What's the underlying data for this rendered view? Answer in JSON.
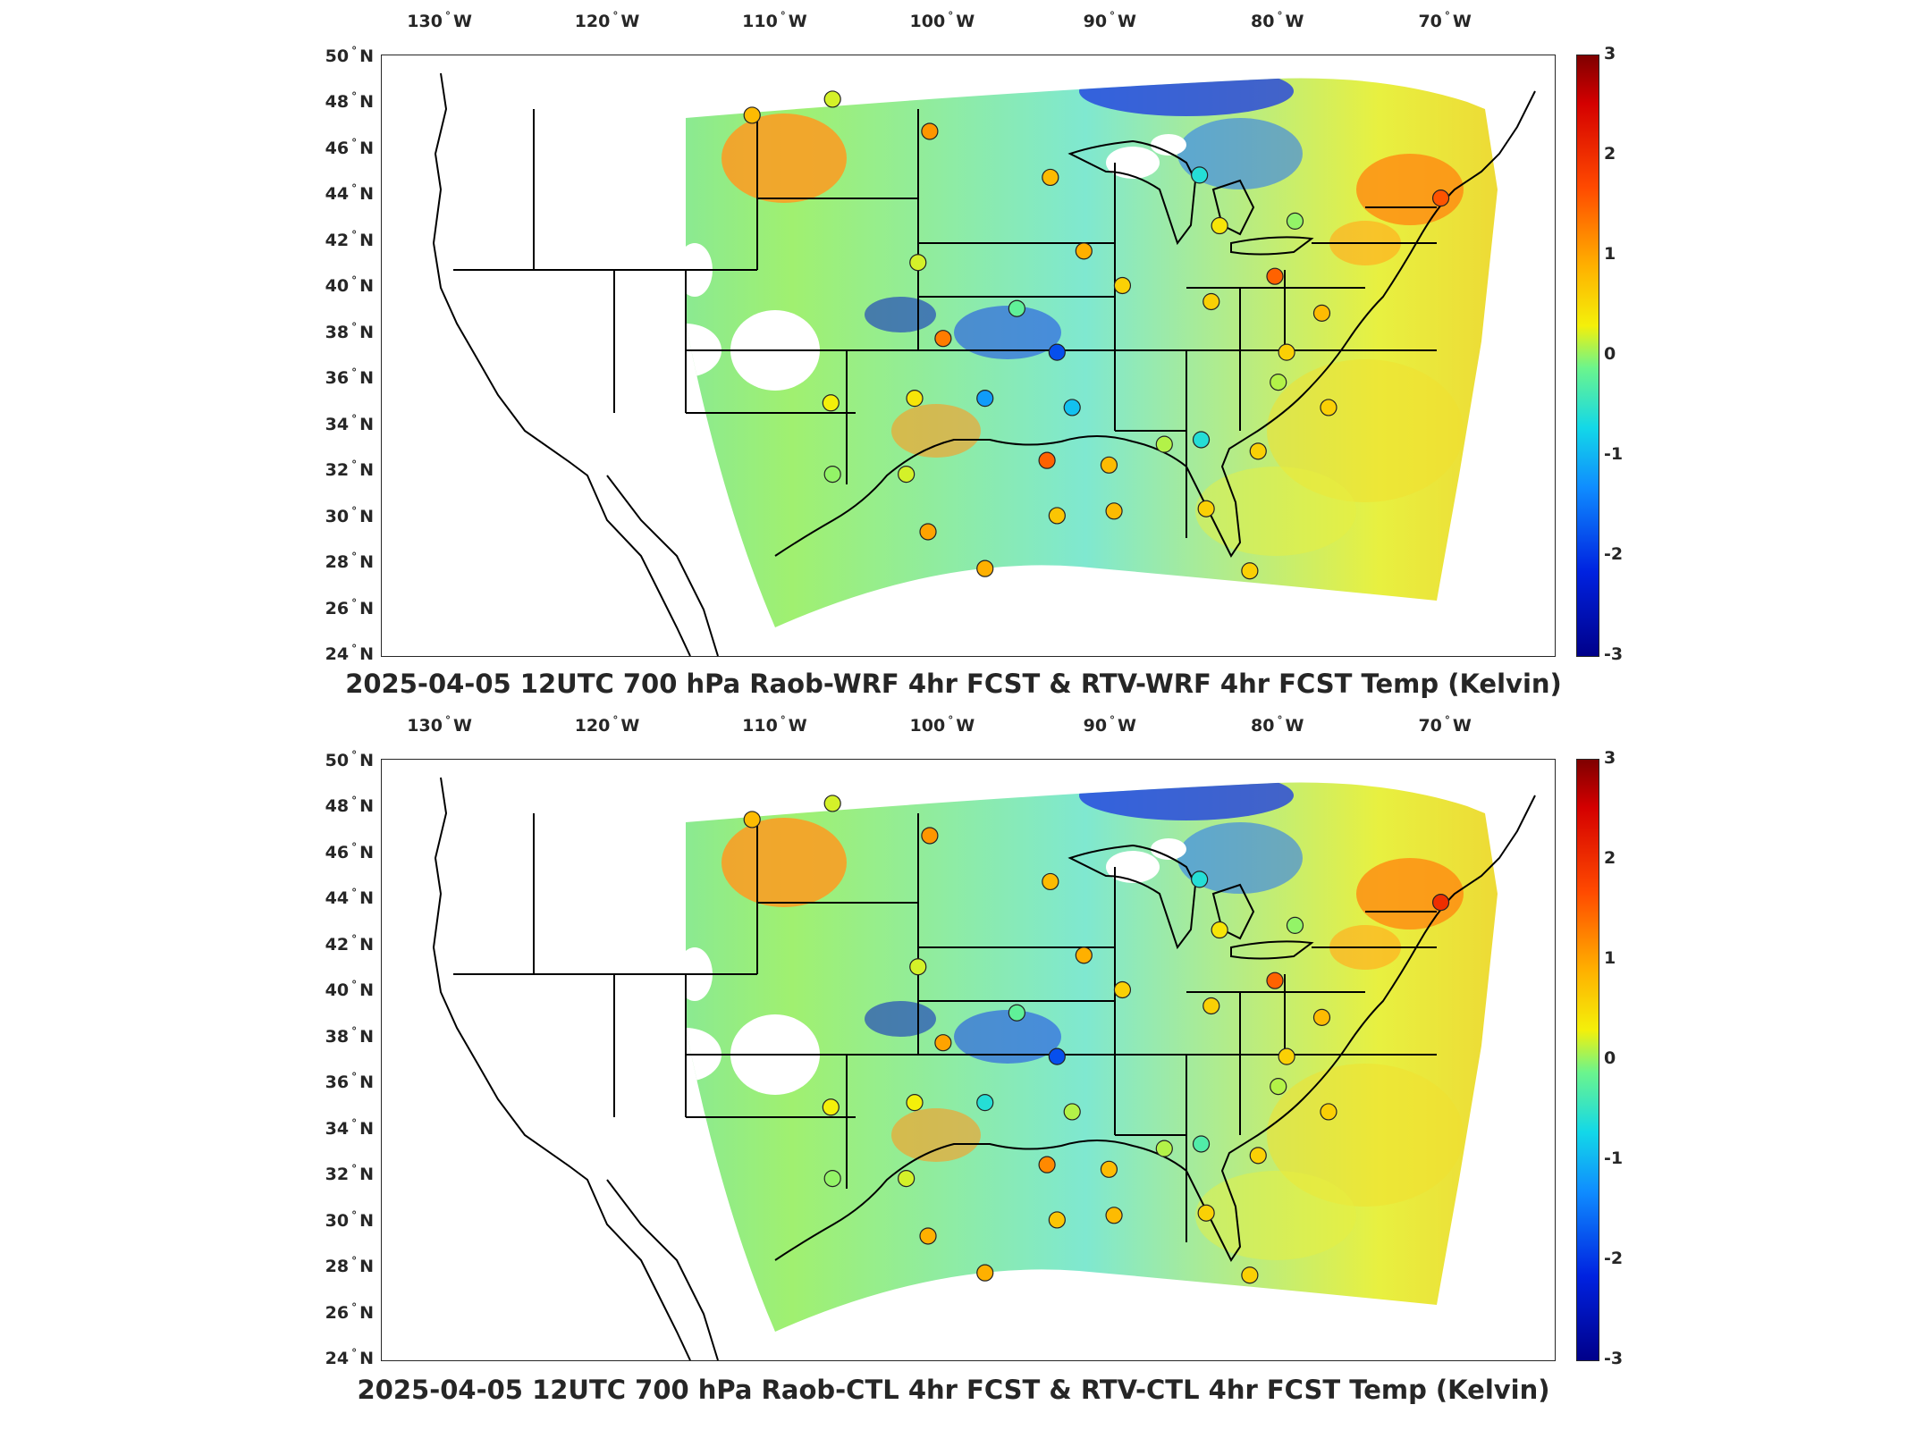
{
  "lon_labels": [
    "130",
    "120",
    "110",
    "100",
    "90",
    "80",
    "70"
  ],
  "lon_suffix": "W",
  "lat_labels": [
    "50",
    "48",
    "46",
    "44",
    "42",
    "40",
    "38",
    "36",
    "34",
    "32",
    "30",
    "28",
    "26",
    "24"
  ],
  "lat_suffix": "N",
  "degree_symbol": "°",
  "colorbar_ticks": [
    "3",
    "2",
    "1",
    "0",
    "-1",
    "-2",
    "-3"
  ],
  "colors": {
    "field_mid": "#7fe8a0",
    "frame": "#262626",
    "no_data": "#ffffff"
  },
  "panels": [
    {
      "title": "2025-04-05 12UTC 700 hPa Raob-WRF 4hr FCST & RTV-WRF 4hr FCST Temp (Kelvin)",
      "stations": [
        {
          "lon": -111.4,
          "lat": 47.5,
          "value": 0.8
        },
        {
          "lon": -106.6,
          "lat": 48.2,
          "value": 0.2
        },
        {
          "lon": -100.8,
          "lat": 46.8,
          "value": 1.1
        },
        {
          "lon": -93.6,
          "lat": 44.8,
          "value": 0.8
        },
        {
          "lon": -84.7,
          "lat": 44.9,
          "value": -0.6
        },
        {
          "lon": -70.3,
          "lat": 43.9,
          "value": 1.6
        },
        {
          "lon": -83.5,
          "lat": 42.7,
          "value": 0.4
        },
        {
          "lon": -79.0,
          "lat": 42.9,
          "value": 0.0
        },
        {
          "lon": -101.5,
          "lat": 41.1,
          "value": 0.2
        },
        {
          "lon": -91.6,
          "lat": 41.6,
          "value": 0.9
        },
        {
          "lon": -80.2,
          "lat": 40.5,
          "value": 1.5
        },
        {
          "lon": -89.3,
          "lat": 40.1,
          "value": 0.6
        },
        {
          "lon": -84.0,
          "lat": 39.4,
          "value": 0.6
        },
        {
          "lon": -95.6,
          "lat": 39.1,
          "value": -0.2
        },
        {
          "lon": -100.0,
          "lat": 37.8,
          "value": 1.3
        },
        {
          "lon": -93.2,
          "lat": 37.2,
          "value": -1.8
        },
        {
          "lon": -77.4,
          "lat": 38.9,
          "value": 0.8
        },
        {
          "lon": -79.5,
          "lat": 37.2,
          "value": 0.6
        },
        {
          "lon": -106.7,
          "lat": 35.0,
          "value": 0.3
        },
        {
          "lon": -101.7,
          "lat": 35.2,
          "value": 0.4
        },
        {
          "lon": -97.5,
          "lat": 35.2,
          "value": -1.2
        },
        {
          "lon": -92.3,
          "lat": 34.8,
          "value": -0.9
        },
        {
          "lon": -80.0,
          "lat": 35.9,
          "value": 0.1
        },
        {
          "lon": -77.0,
          "lat": 34.8,
          "value": 0.6
        },
        {
          "lon": -106.6,
          "lat": 31.9,
          "value": 0.0
        },
        {
          "lon": -102.2,
          "lat": 31.9,
          "value": 0.2
        },
        {
          "lon": -93.8,
          "lat": 32.5,
          "value": 1.5
        },
        {
          "lon": -90.1,
          "lat": 32.3,
          "value": 0.8
        },
        {
          "lon": -86.8,
          "lat": 33.2,
          "value": 0.1
        },
        {
          "lon": -84.6,
          "lat": 33.4,
          "value": -0.6
        },
        {
          "lon": -81.2,
          "lat": 32.9,
          "value": 0.6
        },
        {
          "lon": -100.9,
          "lat": 29.4,
          "value": 1.0
        },
        {
          "lon": -97.5,
          "lat": 27.8,
          "value": 0.9
        },
        {
          "lon": -93.2,
          "lat": 30.1,
          "value": 0.7
        },
        {
          "lon": -89.8,
          "lat": 30.3,
          "value": 0.8
        },
        {
          "lon": -84.3,
          "lat": 30.4,
          "value": 0.6
        },
        {
          "lon": -81.7,
          "lat": 27.7,
          "value": 0.6
        }
      ]
    },
    {
      "title": "2025-04-05 12UTC 700 hPa Raob-CTL 4hr FCST & RTV-CTL 4hr FCST Temp (Kelvin)",
      "stations": [
        {
          "lon": -111.4,
          "lat": 47.5,
          "value": 0.8
        },
        {
          "lon": -106.6,
          "lat": 48.2,
          "value": 0.2
        },
        {
          "lon": -100.8,
          "lat": 46.8,
          "value": 1.1
        },
        {
          "lon": -93.6,
          "lat": 44.8,
          "value": 0.8
        },
        {
          "lon": -84.7,
          "lat": 44.9,
          "value": -0.6
        },
        {
          "lon": -70.3,
          "lat": 43.9,
          "value": 2.0
        },
        {
          "lon": -83.5,
          "lat": 42.7,
          "value": 0.4
        },
        {
          "lon": -79.0,
          "lat": 42.9,
          "value": 0.0
        },
        {
          "lon": -101.5,
          "lat": 41.1,
          "value": 0.2
        },
        {
          "lon": -91.6,
          "lat": 41.6,
          "value": 0.9
        },
        {
          "lon": -80.2,
          "lat": 40.5,
          "value": 1.5
        },
        {
          "lon": -89.3,
          "lat": 40.1,
          "value": 0.6
        },
        {
          "lon": -84.0,
          "lat": 39.4,
          "value": 0.6
        },
        {
          "lon": -95.6,
          "lat": 39.1,
          "value": -0.2
        },
        {
          "lon": -100.0,
          "lat": 37.8,
          "value": 1.0
        },
        {
          "lon": -93.2,
          "lat": 37.2,
          "value": -1.8
        },
        {
          "lon": -77.4,
          "lat": 38.9,
          "value": 0.8
        },
        {
          "lon": -79.5,
          "lat": 37.2,
          "value": 0.6
        },
        {
          "lon": -106.7,
          "lat": 35.0,
          "value": 0.3
        },
        {
          "lon": -101.7,
          "lat": 35.2,
          "value": 0.3
        },
        {
          "lon": -97.5,
          "lat": 35.2,
          "value": -0.6
        },
        {
          "lon": -92.3,
          "lat": 34.8,
          "value": 0.1
        },
        {
          "lon": -80.0,
          "lat": 35.9,
          "value": 0.1
        },
        {
          "lon": -77.0,
          "lat": 34.8,
          "value": 0.6
        },
        {
          "lon": -106.6,
          "lat": 31.9,
          "value": 0.0
        },
        {
          "lon": -102.2,
          "lat": 31.9,
          "value": 0.2
        },
        {
          "lon": -93.8,
          "lat": 32.5,
          "value": 1.2
        },
        {
          "lon": -90.1,
          "lat": 32.3,
          "value": 0.8
        },
        {
          "lon": -86.8,
          "lat": 33.2,
          "value": 0.1
        },
        {
          "lon": -84.6,
          "lat": 33.4,
          "value": -0.3
        },
        {
          "lon": -81.2,
          "lat": 32.9,
          "value": 0.6
        },
        {
          "lon": -100.9,
          "lat": 29.4,
          "value": 0.9
        },
        {
          "lon": -97.5,
          "lat": 27.8,
          "value": 0.9
        },
        {
          "lon": -93.2,
          "lat": 30.1,
          "value": 0.7
        },
        {
          "lon": -89.8,
          "lat": 30.3,
          "value": 0.8
        },
        {
          "lon": -84.3,
          "lat": 30.4,
          "value": 0.6
        },
        {
          "lon": -81.7,
          "lat": 27.7,
          "value": 0.6
        }
      ]
    }
  ]
}
